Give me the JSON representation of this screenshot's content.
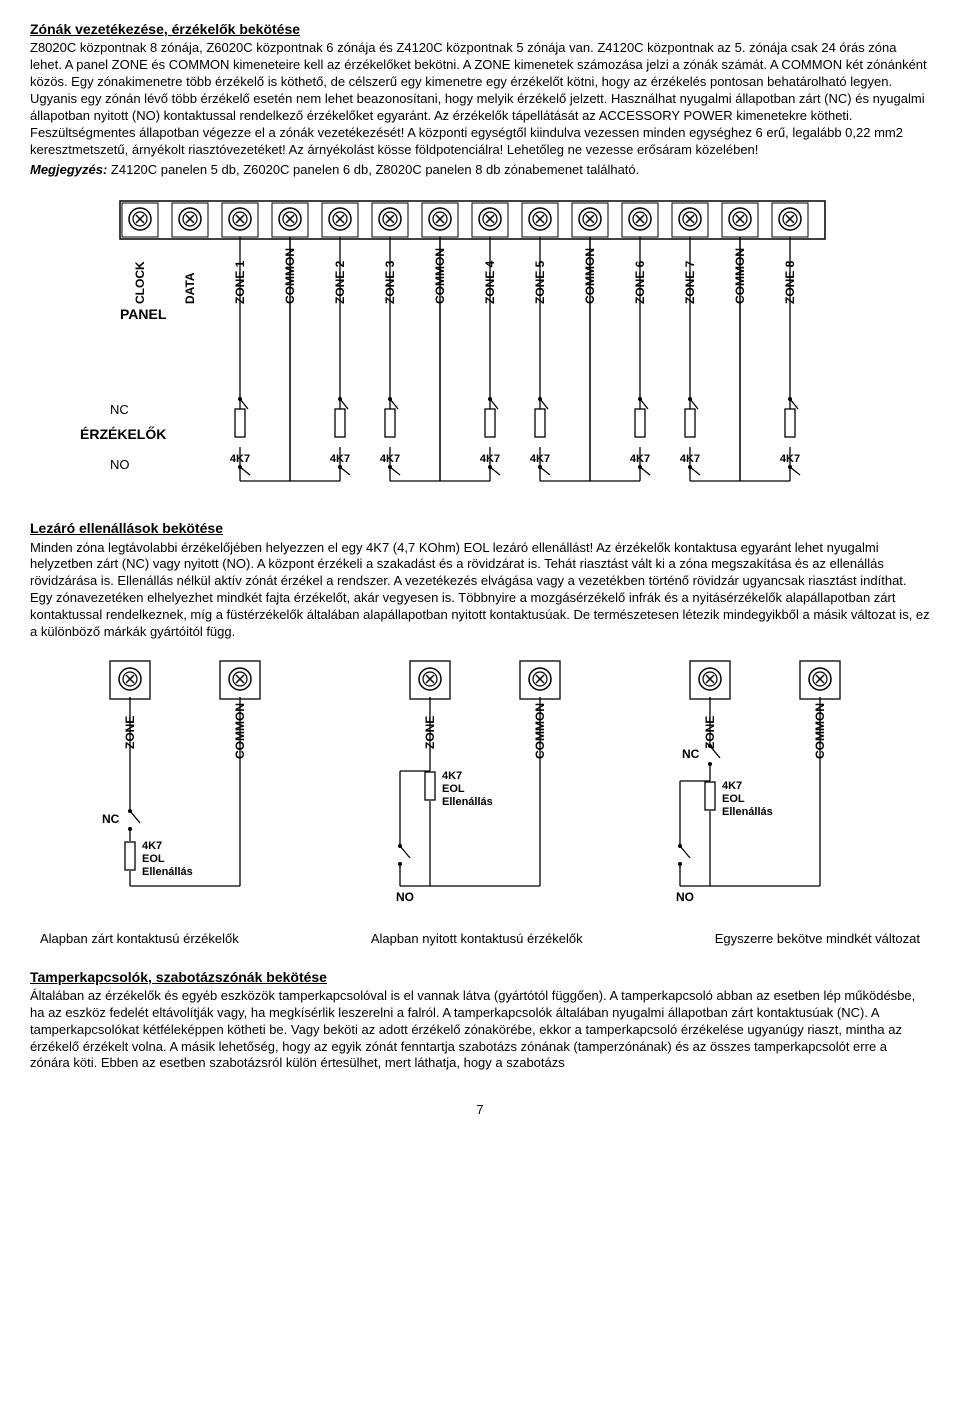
{
  "section1": {
    "title": "Zónák vezetékezése, érzékelők bekötése",
    "body": "Z8020C központnak 8 zónája, Z6020C központnak 6 zónája és Z4120C központnak 5 zónája van. Z4120C központnak az 5. zónája csak 24 órás zóna lehet. A panel ZONE és COMMON kimeneteire kell az érzékelőket bekötni. A ZONE kimenetek számozása jelzi a zónák számát. A COMMON két zónánként közös. Egy zónakimenetre több érzékelő is köthető, de célszerű egy kimenetre egy érzékelőt kötni, hogy az érzékelés pontosan behatárolható legyen. Ugyanis egy zónán lévő több érzékelő esetén nem lehet beazonosítani, hogy melyik érzékelő jelzett. Használhat nyugalmi állapotban zárt (NC) és nyugalmi állapotban nyitott (NO) kontaktussal rendelkező érzékelőket egyaránt. Az érzékelők tápellátását az ACCESSORY POWER kimenetekre kötheti. Feszültségmentes állapotban végezze el a zónák vezetékezését! A központi egységtől kiindulva vezessen minden egységhez 6 erű, legalább 0,22 mm2 keresztmetszetű, árnyékolt riasztóvezetéket! Az árnyékolást kösse földpotenciálra! Lehetőleg ne vezesse erősáram közelében!",
    "note_label": "Megjegyzés:",
    "note_text": " Z4120C panelen 5 db, Z6020C panelen 6 db, Z8020C panelen 8 db zónabemenet található."
  },
  "diagram1": {
    "terminal_labels": [
      "CLOCK",
      "DATA",
      "ZONE 1",
      "COMMON",
      "ZONE 2",
      "ZONE 3",
      "COMMON",
      "ZONE 4",
      "ZONE 5",
      "COMMON",
      "ZONE 6",
      "ZONE 7",
      "COMMON",
      "ZONE 8"
    ],
    "panel_label": "PANEL",
    "sensors_label": "ÉRZÉKELŐK",
    "nc_label": "NC",
    "no_label": "NO",
    "resistor_label": "4K7",
    "terminal_stroke": "#000000",
    "fill_bg": "#ffffff"
  },
  "section2": {
    "title": "Lezáró ellenállások bekötése",
    "body": "Minden zóna legtávolabbi érzékelőjében helyezzen el egy 4K7 (4,7 KOhm) EOL lezáró ellenállást! Az érzékelők kontaktusa egyaránt lehet nyugalmi helyzetben zárt (NC) vagy nyitott (NO). A központ érzékeli a szakadást és a rövidzárat is. Tehát riasztást vált ki a zóna megszakítása és az ellenállás rövidzárása is. Ellenállás nélkül aktív zónát érzékel a rendszer. A vezetékezés elvágása vagy a vezetékben történő rövidzár ugyancsak riasztást indíthat. Egy zónavezetéken elhelyezhet mindkét fajta érzékelőt, akár vegyesen is. Többnyire a mozgásérzékelő infrák és  a nyitásérzékelők alapállapotban zárt kontaktussal rendelkeznek, míg a füstérzékelők általában alapállapotban nyitott kontaktusúak. De természetesen létezik mindegyikből a másik változat is, ez a különböző márkák gyártóitól függ."
  },
  "diagram2": {
    "zone_label": "ZONE",
    "common_label": "COMMON",
    "nc_label": "NC",
    "no_label": "NO",
    "resistor_lines": [
      "4K7",
      "EOL",
      "Ellenállás"
    ],
    "caption1": "Alapban zárt kontaktusú érzékelők",
    "caption2": "Alapban nyitott kontaktusú érzékelők",
    "caption3": "Egyszerre bekötve mindkét változat"
  },
  "section3": {
    "title": "Tamperkapcsolók, szabotázszónák bekötése",
    "body": "Általában az érzékelők és egyéb eszközök tamperkapcsolóval is el vannak látva (gyártótól függően). A tamperkapcsoló abban az esetben lép működésbe, ha az eszköz fedelét eltávolítják vagy, ha megkísérlik leszerelni a falról. A tamperkapcsolók általában nyugalmi állapotban zárt kontaktusúak (NC). A tamperkapcsolókat kétféleképpen kötheti be. Vagy beköti az adott érzékelő zónakörébe, ekkor a tamperkapcsoló érzékelése ugyanúgy riaszt, mintha az érzékelő érzékelt volna. A másik lehetőség, hogy az egyik zónát fenntartja szabotázs zónának (tamperzónának) és az összes tamperkapcsolót erre a zónára köti. Ebben az esetben szabotázsról külön értesülhet, mert láthatja, hogy a szabotázs"
  },
  "page": "7"
}
